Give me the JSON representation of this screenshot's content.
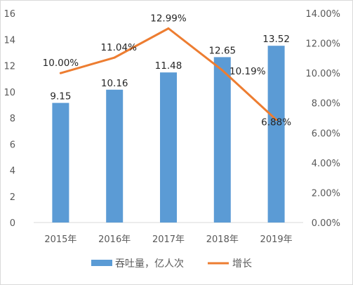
{
  "chart_data": {
    "type": "bar",
    "categories": [
      "2015年",
      "2016年",
      "2017年",
      "2018年",
      "2019年"
    ],
    "series": [
      {
        "name": "吞吐量，亿人次",
        "kind": "bar",
        "axis": "left",
        "color": "#5B9BD5",
        "values": [
          9.15,
          10.16,
          11.48,
          12.65,
          13.52
        ],
        "labels": [
          "9.15",
          "10.16",
          "11.48",
          "12.65",
          "13.52"
        ]
      },
      {
        "name": "增长",
        "kind": "line",
        "axis": "right",
        "color": "#ED7D31",
        "values": [
          10.0,
          11.04,
          12.99,
          10.19,
          6.88
        ],
        "labels": [
          "10.00%",
          "11.04%",
          "12.99%",
          "10.19%",
          "6.88%"
        ]
      }
    ],
    "y_left": {
      "ylim": [
        0,
        16
      ],
      "ticks": [
        "0",
        "2",
        "4",
        "6",
        "8",
        "10",
        "12",
        "14",
        "16"
      ]
    },
    "y_right": {
      "ylim": [
        0,
        14
      ],
      "ticks": [
        "0.00%",
        "2.00%",
        "4.00%",
        "6.00%",
        "8.00%",
        "10.00%",
        "12.00%",
        "14.00%"
      ]
    },
    "grid": false,
    "legend_position": "bottom"
  }
}
